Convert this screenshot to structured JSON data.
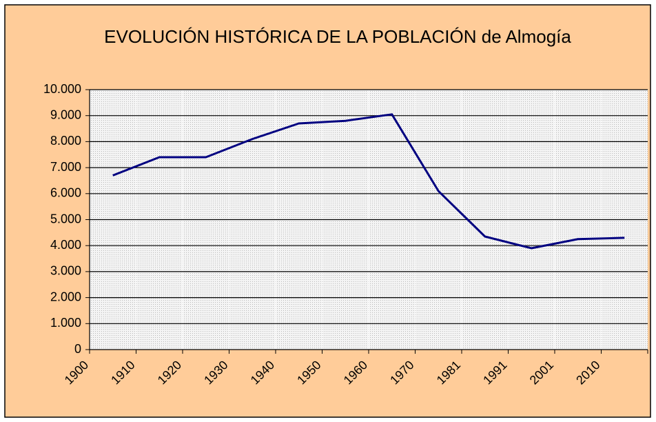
{
  "chart_data": {
    "type": "line",
    "title": "EVOLUCIÓN HISTÓRICA DE LA POBLACIÓN de Almogía",
    "categories": [
      "1900",
      "1910",
      "1920",
      "1930",
      "1940",
      "1950",
      "1960",
      "1970",
      "1981",
      "1991",
      "2001",
      "2010"
    ],
    "series": [
      {
        "name": "Almogía",
        "color": "#000080",
        "values": [
          6700,
          7400,
          7400,
          8100,
          8700,
          8800,
          9050,
          6100,
          4350,
          3900,
          4250,
          4300
        ]
      }
    ],
    "ylim": [
      0,
      10000
    ],
    "yticks": [
      0,
      {
        "value": 1000,
        "label": "1.000"
      },
      {
        "value": 2000,
        "label": "2.000"
      },
      {
        "value": 3000,
        "label": "3.000"
      },
      {
        "value": 4000,
        "label": "4.000"
      },
      {
        "value": 5000,
        "label": "5.000"
      },
      {
        "value": 6000,
        "label": "6.000"
      },
      {
        "value": 7000,
        "label": "7.000"
      },
      {
        "value": 8000,
        "label": "8.000"
      },
      {
        "value": 9000,
        "label": "9.000"
      },
      {
        "value": 10000,
        "label": "10.000"
      }
    ],
    "grid": true
  }
}
